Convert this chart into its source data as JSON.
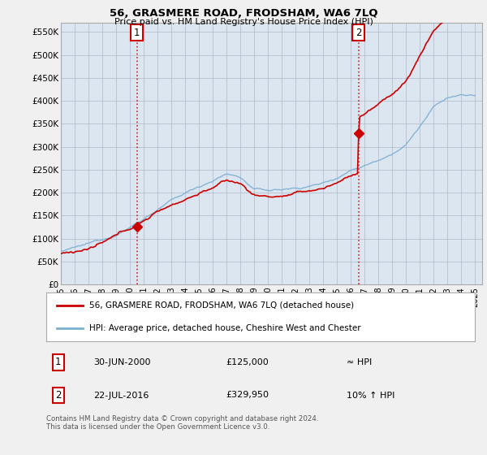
{
  "title": "56, GRASMERE ROAD, FRODSHAM, WA6 7LQ",
  "subtitle": "Price paid vs. HM Land Registry's House Price Index (HPI)",
  "legend_line1": "56, GRASMERE ROAD, FRODSHAM, WA6 7LQ (detached house)",
  "legend_line2": "HPI: Average price, detached house, Cheshire West and Chester",
  "annotation1_date": "30-JUN-2000",
  "annotation1_price": "£125,000",
  "annotation1_hpi": "≈ HPI",
  "annotation2_date": "22-JUL-2016",
  "annotation2_price": "£329,950",
  "annotation2_hpi": "10% ↑ HPI",
  "footer": "Contains HM Land Registry data © Crown copyright and database right 2024.\nThis data is licensed under the Open Government Licence v3.0.",
  "ylim": [
    0,
    570000
  ],
  "yticks": [
    0,
    50000,
    100000,
    150000,
    200000,
    250000,
    300000,
    350000,
    400000,
    450000,
    500000,
    550000
  ],
  "ytick_labels": [
    "£0",
    "£50K",
    "£100K",
    "£150K",
    "£200K",
    "£250K",
    "£300K",
    "£350K",
    "£400K",
    "£450K",
    "£500K",
    "£550K"
  ],
  "background_color": "#f0f0f0",
  "plot_background": "#dce6f0",
  "grid_color": "#b0b8c8",
  "red_line_color": "#cc0000",
  "blue_line_color": "#7bafd4",
  "marker1_x": 2000.5,
  "marker1_y": 125000,
  "marker2_x": 2016.55,
  "marker2_y": 329950,
  "vline1_x": 2000.5,
  "vline2_x": 2016.55,
  "xmin": 1995.0,
  "xmax": 2025.5,
  "xticks": [
    1995,
    1996,
    1997,
    1998,
    1999,
    2000,
    2001,
    2002,
    2003,
    2004,
    2005,
    2006,
    2007,
    2008,
    2009,
    2010,
    2011,
    2012,
    2013,
    2014,
    2015,
    2016,
    2017,
    2018,
    2019,
    2020,
    2021,
    2022,
    2023,
    2024,
    2025
  ]
}
